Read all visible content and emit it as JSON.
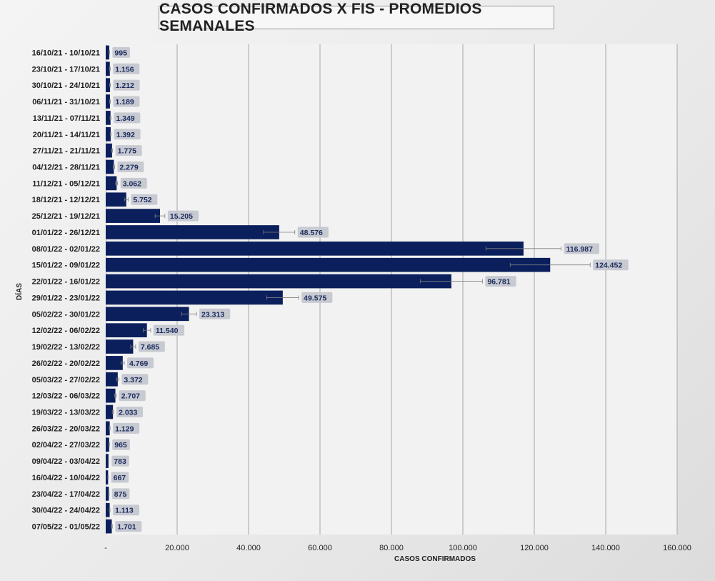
{
  "chart_data": {
    "type": "bar",
    "orientation": "horizontal",
    "title": "CASOS CONFIRMADOS X FIS - PROMEDIOS SEMANALES",
    "xlabel": "CASOS CONFIRMADOS",
    "ylabel": "DÍAS",
    "xlim": [
      0,
      160000
    ],
    "x_ticks": [
      "-",
      "20.000",
      "40.000",
      "60.000",
      "80.000",
      "100.000",
      "120.000",
      "140.000",
      "160.000"
    ],
    "x_tick_values": [
      0,
      20000,
      40000,
      60000,
      80000,
      100000,
      120000,
      140000,
      160000
    ],
    "grid": "vertical",
    "bar_color": "#0b1f5c",
    "error_bars": true,
    "categories": [
      "16/10/21 - 10/10/21",
      "23/10/21 - 17/10/21",
      "30/10/21 - 24/10/21",
      "06/11/21 - 31/10/21",
      "13/11/21 - 07/11/21",
      "20/11/21 - 14/11/21",
      "27/11/21 - 21/11/21",
      "04/12/21 - 28/11/21",
      "11/12/21 - 05/12/21",
      "18/12/21 - 12/12/21",
      "25/12/21 - 19/12/21",
      "01/01/22 - 26/12/21",
      "08/01/22 - 02/01/22",
      "15/01/22 - 09/01/22",
      "22/01/22 - 16/01/22",
      "29/01/22 - 23/01/22",
      "05/02/22 - 30/01/22",
      "12/02/22 - 06/02/22",
      "19/02/22 - 13/02/22",
      "26/02/22 - 20/02/22",
      "05/03/22 - 27/02/22",
      "12/03/22 - 06/03/22",
      "19/03/22 - 13/03/22",
      "26/03/22 - 20/03/22",
      "02/04/22 - 27/03/22",
      "09/04/22 - 03/04/22",
      "16/04/22 - 10/04/22",
      "23/04/22 - 17/04/22",
      "30/04/22 - 24/04/22",
      "07/05/22 - 01/05/22"
    ],
    "values": [
      995,
      1156,
      1212,
      1189,
      1349,
      1392,
      1775,
      2279,
      3062,
      5752,
      15205,
      48576,
      116987,
      124452,
      96781,
      49575,
      23313,
      11540,
      7685,
      4769,
      3372,
      2707,
      2033,
      1129,
      965,
      783,
      667,
      875,
      1113,
      1701
    ],
    "value_labels": [
      "995",
      "1.156",
      "1.212",
      "1.189",
      "1.349",
      "1.392",
      "1.775",
      "2.279",
      "3.062",
      "5.752",
      "15.205",
      "48.576",
      "116.987",
      "124.452",
      "96.781",
      "49.575",
      "23.313",
      "11.540",
      "7.685",
      "4.769",
      "3.372",
      "2.707",
      "2.033",
      "1.129",
      "965",
      "783",
      "667",
      "875",
      "1.113",
      "1.701"
    ]
  }
}
